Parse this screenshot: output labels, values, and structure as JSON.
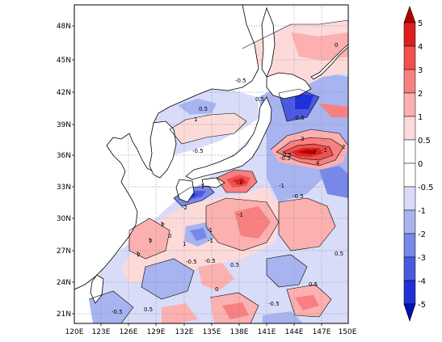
{
  "map": {
    "lon_labels": [
      "120E",
      "123E",
      "126E",
      "129E",
      "132E",
      "135E",
      "138E",
      "141E",
      "144E",
      "147E",
      "150E"
    ],
    "lat_labels": [
      "21N",
      "24N",
      "27N",
      "30N",
      "33N",
      "36N",
      "39N",
      "42N",
      "45N",
      "48N"
    ],
    "contour_labels": [
      "-0.5",
      "-0.5",
      "-1",
      "0.5",
      "1",
      "-1",
      "0.5",
      "-1",
      "1",
      "-1",
      "-0.5",
      "-0.5",
      "2",
      "-2",
      "-1",
      "-1",
      "-0.5",
      "1",
      "3",
      "2",
      "4",
      "0.5",
      "-0.5",
      "0.5",
      "0.5",
      "-0.5",
      "-0.5",
      "0.5",
      "-0.5",
      "0.5",
      "0",
      "0",
      "0"
    ]
  },
  "colorbar": {
    "labels": [
      "5",
      "4",
      "3",
      "2",
      "1",
      "0.5",
      "0",
      "-0.5",
      "-1",
      "-2",
      "-3",
      "-4",
      "-5"
    ],
    "colors": [
      "#b40000",
      "#dc2020",
      "#f05050",
      "#f88080",
      "#fcb0b0",
      "#fddada",
      "#ffffff",
      "#d8dcf8",
      "#a8b4f0",
      "#7888e8",
      "#4a5ae0",
      "#2030d8",
      "#0010b0"
    ]
  }
}
